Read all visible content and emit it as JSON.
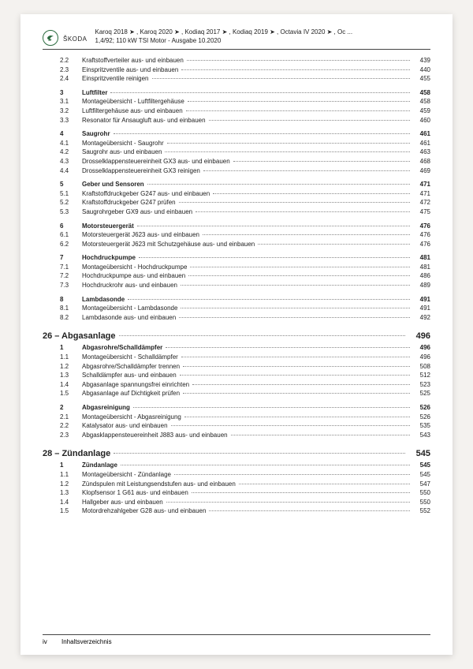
{
  "header": {
    "brand": "ŠKODA",
    "line1": "Karoq 2018 ➤ , Karoq 2020 ➤ , Kodiaq 2017 ➤ , Kodiaq 2019 ➤ , Octavia IV 2020 ➤ , Oc ...",
    "line2": "1,4/92; 110 kW TSI Motor - Ausgabe 10.2020"
  },
  "pre_rows": [
    {
      "n": "2.2",
      "t": "Kraftstoffverteiler aus- und einbauen",
      "p": "439"
    },
    {
      "n": "2.3",
      "t": "Einspritzventile aus- und einbauen",
      "p": "440"
    },
    {
      "n": "2.4",
      "t": "Einspritzventile reinigen",
      "p": "455"
    }
  ],
  "groups": [
    {
      "head": {
        "n": "3",
        "t": "Luftfilter",
        "p": "458",
        "bold": true
      },
      "rows": [
        {
          "n": "3.1",
          "t": "Montageübersicht - Luftfiltergehäuse",
          "p": "458"
        },
        {
          "n": "3.2",
          "t": "Luftfiltergehäuse aus- und einbauen",
          "p": "459"
        },
        {
          "n": "3.3",
          "t": "Resonator für Ansaugluft aus- und einbauen",
          "p": "460"
        }
      ]
    },
    {
      "head": {
        "n": "4",
        "t": "Saugrohr",
        "p": "461",
        "bold": true
      },
      "rows": [
        {
          "n": "4.1",
          "t": "Montageübersicht - Saugrohr",
          "p": "461"
        },
        {
          "n": "4.2",
          "t": "Saugrohr aus- und einbauen",
          "p": "463"
        },
        {
          "n": "4.3",
          "t": "Drosselklappensteuereinheit GX3 aus- und einbauen",
          "p": "468"
        },
        {
          "n": "4.4",
          "t": "Drosselklappensteuereinheit GX3 reinigen",
          "p": "469"
        }
      ]
    },
    {
      "head": {
        "n": "5",
        "t": "Geber und Sensoren",
        "p": "471",
        "bold": true
      },
      "rows": [
        {
          "n": "5.1",
          "t": "Kraftstoffdruckgeber G247 aus- und einbauen",
          "p": "471"
        },
        {
          "n": "5.2",
          "t": "Kraftstoffdruckgeber G247 prüfen",
          "p": "472"
        },
        {
          "n": "5.3",
          "t": "Saugrohrgeber GX9 aus- und einbauen",
          "p": "475"
        }
      ]
    },
    {
      "head": {
        "n": "6",
        "t": "Motorsteuergerät",
        "p": "476",
        "bold": true
      },
      "rows": [
        {
          "n": "6.1",
          "t": "Motorsteuergerät J623 aus- und einbauen",
          "p": "476"
        },
        {
          "n": "6.2",
          "t": "Motorsteuergerät J623 mit Schutzgehäuse aus- und einbauen",
          "p": "476"
        }
      ]
    },
    {
      "head": {
        "n": "7",
        "t": "Hochdruckpumpe",
        "p": "481",
        "bold": true
      },
      "rows": [
        {
          "n": "7.1",
          "t": "Montageübersicht - Hochdruckpumpe",
          "p": "481"
        },
        {
          "n": "7.2",
          "t": "Hochdruckpumpe aus- und einbauen",
          "p": "486"
        },
        {
          "n": "7.3",
          "t": "Hochdruckrohr aus- und einbauen",
          "p": "489"
        }
      ]
    },
    {
      "head": {
        "n": "8",
        "t": "Lambdasonde",
        "p": "491",
        "bold": true
      },
      "rows": [
        {
          "n": "8.1",
          "t": "Montageübersicht - Lambdasonde",
          "p": "491"
        },
        {
          "n": "8.2",
          "t": "Lambdasonde aus- und einbauen",
          "p": "492"
        }
      ]
    }
  ],
  "chapters": [
    {
      "title": "26 – Abgasanlage",
      "page": "496",
      "groups": [
        {
          "head": {
            "n": "1",
            "t": "Abgasrohre/Schalldämpfer",
            "p": "496",
            "bold": true
          },
          "rows": [
            {
              "n": "1.1",
              "t": "Montageübersicht - Schalldämpfer",
              "p": "496"
            },
            {
              "n": "1.2",
              "t": "Abgasrohre/Schalldämpfer trennen",
              "p": "508"
            },
            {
              "n": "1.3",
              "t": "Schalldämpfer aus- und einbauen",
              "p": "512"
            },
            {
              "n": "1.4",
              "t": "Abgasanlage spannungsfrei einrichten",
              "p": "523"
            },
            {
              "n": "1.5",
              "t": "Abgasanlage auf Dichtigkeit prüfen",
              "p": "525"
            }
          ]
        },
        {
          "head": {
            "n": "2",
            "t": "Abgasreinigung",
            "p": "526",
            "bold": true
          },
          "rows": [
            {
              "n": "2.1",
              "t": "Montageübersicht - Abgasreinigung",
              "p": "526"
            },
            {
              "n": "2.2",
              "t": "Katalysator aus- und einbauen",
              "p": "535"
            },
            {
              "n": "2.3",
              "t": "Abgasklappensteuereinheit J883 aus- und einbauen",
              "p": "543"
            }
          ]
        }
      ]
    },
    {
      "title": "28 – Zündanlage",
      "page": "545",
      "groups": [
        {
          "head": {
            "n": "1",
            "t": "Zündanlage",
            "p": "545",
            "bold": true
          },
          "rows": [
            {
              "n": "1.1",
              "t": "Montageübersicht - Zündanlage",
              "p": "545"
            },
            {
              "n": "1.2",
              "t": "Zündspulen mit Leistungsendstufen aus- und einbauen",
              "p": "547"
            },
            {
              "n": "1.3",
              "t": "Klopfsensor 1 G61 aus- und einbauen",
              "p": "550"
            },
            {
              "n": "1.4",
              "t": "Hallgeber aus- und einbauen",
              "p": "550"
            },
            {
              "n": "1.5",
              "t": "Motordrehzahlgeber G28 aus- und einbauen",
              "p": "552"
            }
          ]
        }
      ]
    }
  ],
  "footer": {
    "page": "iv",
    "label": "Inhaltsverzeichnis"
  }
}
